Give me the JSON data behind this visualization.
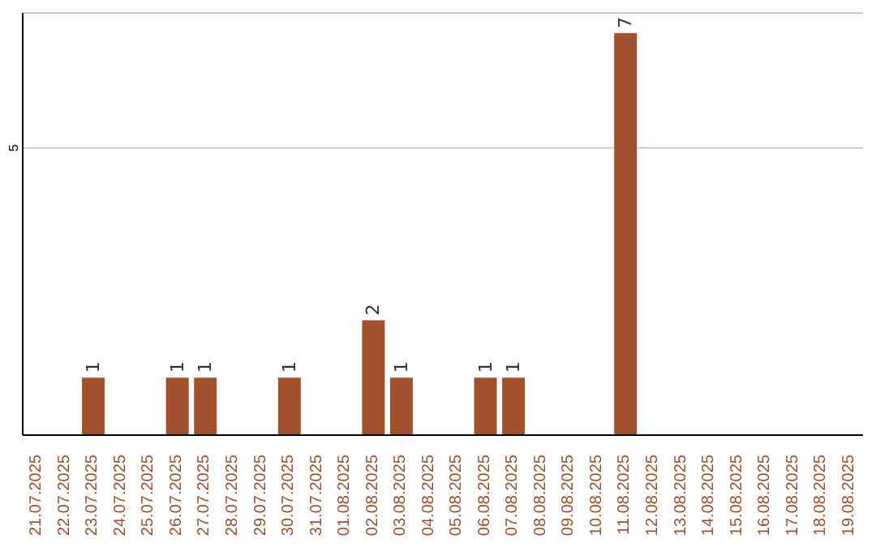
{
  "chart_data": {
    "type": "bar",
    "categories": [
      "21.07.2025",
      "22.07.2025",
      "23.07.2025",
      "24.07.2025",
      "25.07.2025",
      "26.07.2025",
      "27.07.2025",
      "28.07.2025",
      "29.07.2025",
      "30.07.2025",
      "31.07.2025",
      "01.08.2025",
      "02.08.2025",
      "03.08.2025",
      "04.08.2025",
      "05.08.2025",
      "06.08.2025",
      "07.08.2025",
      "08.08.2025",
      "09.08.2025",
      "10.08.2025",
      "11.08.2025",
      "12.08.2025",
      "13.08.2025",
      "14.08.2025",
      "15.08.2025",
      "16.08.2025",
      "17.08.2025",
      "18.08.2025",
      "19.08.2025"
    ],
    "values": [
      0,
      0,
      1,
      0,
      0,
      1,
      1,
      0,
      0,
      1,
      0,
      0,
      2,
      1,
      0,
      0,
      1,
      1,
      0,
      0,
      0,
      7,
      0,
      0,
      0,
      0,
      0,
      0,
      0,
      0
    ],
    "value_labels": [
      null,
      null,
      "1",
      null,
      null,
      "1",
      "1",
      null,
      null,
      "1",
      null,
      null,
      "2",
      "1",
      null,
      null,
      "1",
      "1",
      null,
      null,
      null,
      "7",
      null,
      null,
      null,
      null,
      null,
      null,
      null,
      null
    ],
    "color": "#a0522d",
    "ylim": [
      0,
      7.35
    ],
    "yticks": [
      5
    ],
    "grid": "y"
  }
}
